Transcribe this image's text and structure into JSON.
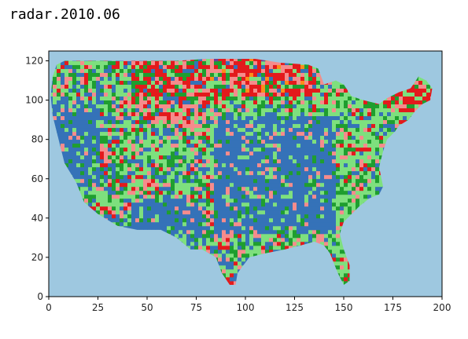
{
  "title": "radar.2010.06",
  "chart_data": {
    "type": "heatmap",
    "title": "radar.2010.06",
    "xlabel": "",
    "ylabel": "",
    "xlim": [
      0,
      200
    ],
    "ylim": [
      0,
      125
    ],
    "x_ticks": [
      0,
      25,
      50,
      75,
      100,
      125,
      150,
      175,
      200
    ],
    "y_ticks": [
      0,
      20,
      40,
      60,
      80,
      100,
      120
    ],
    "grid": false,
    "colors": {
      "background": "#9ec8e0",
      "blue": "#3572b8",
      "light_green": "#7ee07e",
      "green": "#1f9e2f",
      "salmon": "#f58c8c",
      "red": "#e31a1c",
      "orange": "#ff8c1a",
      "purple": "#6a3d9a"
    },
    "data_values": {
      "rows": 125,
      "cols": 200,
      "description_of_classes": [
        "blue",
        "light_green",
        "green",
        "salmon",
        "red"
      ]
    }
  }
}
